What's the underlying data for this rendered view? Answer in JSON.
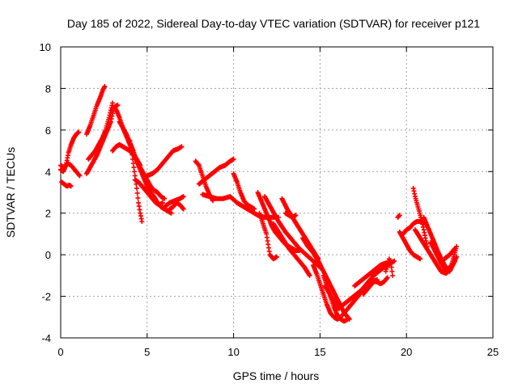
{
  "chart_data": {
    "type": "scatter",
    "title": "Day 185 of 2022, Sidereal Day-to-day VTEC variation (SDTVAR) for receiver p121",
    "xlabel": "GPS time / hours",
    "ylabel": "SDTVAR / TECUs",
    "xlim": [
      0,
      25
    ],
    "ylim": [
      -4,
      10
    ],
    "xticks": [
      0,
      5,
      10,
      15,
      20,
      25
    ],
    "yticks": [
      -4,
      -2,
      0,
      2,
      4,
      6,
      8,
      10
    ],
    "xtick_labels": [
      "0",
      "5",
      "10",
      "15",
      "20",
      "25"
    ],
    "ytick_labels": [
      "-4",
      "-2",
      "0",
      "2",
      "4",
      "6",
      "8",
      "10"
    ],
    "grid": true,
    "marker": "+",
    "color": "#ff0000",
    "series": [
      {
        "name": "arc-1",
        "x": [
          0.0,
          0.15,
          0.3,
          0.45,
          0.6,
          0.75,
          0.9,
          1.05
        ],
        "y": [
          4.1,
          4.0,
          4.3,
          4.9,
          5.3,
          5.6,
          5.8,
          5.9
        ]
      },
      {
        "name": "arc-2",
        "x": [
          0.0,
          0.2,
          0.4,
          0.6,
          0.8,
          1.0,
          1.1
        ],
        "y": [
          4.3,
          4.2,
          4.4,
          4.3,
          4.1,
          3.9,
          3.8
        ]
      },
      {
        "name": "arc-3",
        "x": [
          0.05,
          0.2,
          0.35,
          0.5,
          0.6
        ],
        "y": [
          3.5,
          3.4,
          3.3,
          3.35,
          3.3
        ]
      },
      {
        "name": "arc-4",
        "x": [
          1.5,
          1.7,
          1.9,
          2.1,
          2.3,
          2.45,
          2.55
        ],
        "y": [
          5.8,
          6.2,
          6.7,
          7.2,
          7.6,
          7.95,
          8.1
        ]
      },
      {
        "name": "arc-5",
        "x": [
          1.5,
          1.7,
          1.9,
          2.1,
          2.3,
          2.5,
          2.7,
          2.9,
          3.0,
          3.1,
          3.3
        ],
        "y": [
          3.9,
          4.2,
          4.5,
          4.8,
          5.2,
          5.6,
          6.0,
          6.4,
          6.8,
          7.1,
          7.2
        ]
      },
      {
        "name": "arc-6",
        "x": [
          1.6,
          1.8,
          2.0,
          2.2,
          2.4,
          2.6,
          2.8,
          3.0
        ],
        "y": [
          4.6,
          4.8,
          5.0,
          5.3,
          5.6,
          6.0,
          6.6,
          7.3
        ]
      },
      {
        "name": "arc-7",
        "x": [
          3.0,
          3.2,
          3.4,
          3.6,
          3.8,
          4.0,
          4.2,
          4.4,
          4.6
        ],
        "y": [
          5.0,
          5.2,
          5.3,
          5.2,
          5.1,
          5.0,
          4.8,
          4.6,
          4.3
        ]
      },
      {
        "name": "arc-8",
        "x": [
          3.2,
          3.4,
          3.6,
          3.8,
          4.0,
          4.2,
          4.4,
          4.6,
          4.8,
          5.0,
          5.2,
          5.4,
          5.6,
          5.8,
          6.0
        ],
        "y": [
          7.0,
          6.6,
          6.1,
          5.7,
          5.3,
          4.9,
          4.5,
          4.2,
          3.9,
          3.6,
          3.3,
          3.1,
          3.0,
          2.8,
          2.7
        ]
      },
      {
        "name": "arc-9",
        "x": [
          3.4,
          3.6,
          3.8,
          4.0,
          4.2,
          4.4,
          4.6,
          4.8,
          5.0,
          5.2,
          5.4,
          5.6,
          5.8,
          6.0,
          6.2,
          6.4
        ],
        "y": [
          6.4,
          6.1,
          5.8,
          5.4,
          5.0,
          4.5,
          4.1,
          3.7,
          3.3,
          3.0,
          2.8,
          2.5,
          2.3,
          2.2,
          2.1,
          2.0
        ]
      },
      {
        "name": "arc-10",
        "x": [
          4.0,
          4.1,
          4.2,
          4.3,
          4.4,
          4.5,
          4.6,
          4.7
        ],
        "y": [
          5.5,
          5.0,
          4.4,
          3.8,
          3.2,
          2.5,
          2.0,
          1.6
        ]
      },
      {
        "name": "arc-11",
        "x": [
          4.3,
          4.5,
          4.7,
          4.9,
          5.1,
          5.3,
          5.5,
          5.7,
          5.9
        ],
        "y": [
          3.6,
          3.5,
          3.3,
          3.1,
          2.9,
          2.7,
          2.5,
          2.4,
          2.5
        ]
      },
      {
        "name": "arc-12",
        "x": [
          5.0,
          5.3,
          5.6,
          5.9,
          6.2,
          6.5,
          6.8,
          7.0
        ],
        "y": [
          3.8,
          3.9,
          4.1,
          4.4,
          4.7,
          5.0,
          5.1,
          5.2
        ]
      },
      {
        "name": "arc-13",
        "x": [
          6.0,
          6.3,
          6.6,
          6.9,
          7.1
        ],
        "y": [
          2.3,
          2.5,
          2.6,
          2.7,
          2.8
        ]
      },
      {
        "name": "arc-14",
        "x": [
          6.3,
          6.5,
          6.7,
          6.9,
          7.1
        ],
        "y": [
          2.2,
          2.3,
          2.5,
          2.4,
          2.2
        ]
      },
      {
        "name": "arc-15",
        "x": [
          7.8,
          8.0,
          8.2,
          8.4,
          8.6,
          8.8
        ],
        "y": [
          4.5,
          4.3,
          3.8,
          3.3,
          2.9,
          2.6
        ]
      },
      {
        "name": "arc-16",
        "x": [
          8.0,
          8.3,
          8.6,
          8.9,
          9.2,
          9.5,
          9.8,
          10.0
        ],
        "y": [
          3.4,
          3.6,
          3.8,
          4.0,
          4.2,
          4.3,
          4.5,
          4.6
        ]
      },
      {
        "name": "arc-17",
        "x": [
          8.2,
          8.6,
          9.0,
          9.4,
          9.8,
          10.2,
          10.6,
          11.0,
          11.4,
          11.8,
          12.2,
          12.6
        ],
        "y": [
          2.9,
          2.8,
          2.7,
          2.7,
          2.8,
          2.5,
          2.3,
          2.1,
          1.9,
          1.8,
          1.8,
          1.8
        ]
      },
      {
        "name": "arc-18",
        "x": [
          10.0,
          10.2,
          10.4,
          10.6,
          10.8,
          11.0,
          11.2
        ],
        "y": [
          3.9,
          3.5,
          3.0,
          2.6,
          2.4,
          2.3,
          2.2
        ]
      },
      {
        "name": "arc-19",
        "x": [
          11.4,
          11.6,
          11.8,
          12.0,
          12.2,
          12.4,
          12.6,
          12.8,
          13.0,
          13.2,
          13.4,
          13.6,
          13.8
        ],
        "y": [
          3.0,
          2.6,
          2.2,
          1.8,
          1.4,
          1.1,
          0.9,
          0.7,
          0.5,
          0.4,
          0.3,
          0.2,
          0.2
        ]
      },
      {
        "name": "arc-20",
        "x": [
          11.5,
          11.7,
          11.9,
          12.0,
          12.1,
          12.3,
          12.5
        ],
        "y": [
          2.0,
          1.5,
          1.0,
          0.5,
          0.0,
          -0.2,
          -0.1
        ]
      },
      {
        "name": "arc-21",
        "x": [
          11.8,
          12.2,
          12.6,
          13.0,
          13.4,
          13.8,
          14.2,
          14.6,
          15.0
        ],
        "y": [
          2.8,
          2.2,
          1.6,
          1.1,
          0.7,
          0.3,
          0.0,
          -0.3,
          -0.6
        ]
      },
      {
        "name": "arc-22",
        "x": [
          12.3,
          12.6,
          12.9,
          13.2,
          13.5,
          13.8,
          14.1,
          14.4
        ],
        "y": [
          1.5,
          1.1,
          0.7,
          0.3,
          0.0,
          -0.3,
          -0.6,
          -1.0
        ]
      },
      {
        "name": "arc-23",
        "x": [
          12.8,
          13.1,
          13.4,
          13.7,
          14.0,
          14.3,
          14.6,
          14.9
        ],
        "y": [
          2.7,
          2.2,
          1.8,
          1.4,
          1.0,
          0.6,
          0.2,
          -0.2
        ]
      },
      {
        "name": "arc-24",
        "x": [
          13.0,
          13.2,
          13.4,
          13.6
        ],
        "y": [
          2.0,
          1.9,
          1.8,
          1.9
        ]
      },
      {
        "name": "arc-25",
        "x": [
          14.0,
          14.3,
          14.6,
          14.9,
          15.2,
          15.5,
          15.8,
          16.1,
          16.4,
          16.7
        ],
        "y": [
          0.8,
          0.4,
          0.1,
          -0.3,
          -0.8,
          -1.3,
          -1.8,
          -2.3,
          -2.8,
          -3.1
        ]
      },
      {
        "name": "arc-26",
        "x": [
          14.6,
          14.8,
          15.0,
          15.2,
          15.4,
          15.6,
          15.8,
          16.0,
          16.2
        ],
        "y": [
          -0.5,
          -0.9,
          -1.4,
          -1.9,
          -2.4,
          -2.8,
          -3.0,
          -3.1,
          -3.0
        ]
      },
      {
        "name": "arc-27",
        "x": [
          15.2,
          15.4,
          15.6,
          15.8,
          16.0,
          16.2,
          16.4,
          16.6
        ],
        "y": [
          -1.0,
          -1.5,
          -2.0,
          -2.5,
          -2.9,
          -3.1,
          -3.2,
          -3.1
        ]
      },
      {
        "name": "arc-28",
        "x": [
          15.3,
          15.5,
          15.7,
          15.9,
          16.1
        ],
        "y": [
          -1.5,
          -1.8,
          -2.1,
          -2.3,
          -2.6
        ]
      },
      {
        "name": "arc-29",
        "x": [
          15.9,
          16.2,
          16.5,
          16.8,
          17.1,
          17.4,
          17.7,
          18.0,
          18.3
        ],
        "y": [
          -2.6,
          -2.5,
          -2.3,
          -2.1,
          -1.9,
          -1.7,
          -1.5,
          -1.3,
          -1.2
        ]
      },
      {
        "name": "arc-30",
        "x": [
          16.3,
          16.6,
          16.9,
          17.2,
          17.5,
          17.8,
          18.1,
          18.4,
          18.7,
          19.0
        ],
        "y": [
          -2.9,
          -2.6,
          -2.3,
          -2.0,
          -1.6,
          -1.3,
          -1.0,
          -0.8,
          -0.6,
          -0.5
        ]
      },
      {
        "name": "arc-31",
        "x": [
          17.0,
          17.3,
          17.6,
          17.9,
          18.2,
          18.5,
          18.8,
          19.1,
          19.3
        ],
        "y": [
          -1.5,
          -1.3,
          -1.1,
          -0.9,
          -0.7,
          -0.5,
          -0.4,
          -0.4,
          -0.3
        ]
      },
      {
        "name": "arc-32",
        "x": [
          17.5,
          17.7,
          17.9,
          18.1,
          18.3,
          18.5,
          18.7,
          18.9
        ],
        "y": [
          -1.9,
          -1.7,
          -1.5,
          -1.3,
          -1.3,
          -1.4,
          -1.3,
          -1.1
        ]
      },
      {
        "name": "arc-33",
        "x": [
          18.8,
          18.9,
          19.0,
          19.1,
          19.2
        ],
        "y": [
          -0.8,
          -0.5,
          -0.2,
          -0.4,
          -1.0
        ]
      },
      {
        "name": "arc-34",
        "x": [
          19.5,
          19.6
        ],
        "y": [
          1.8,
          1.9
        ]
      },
      {
        "name": "arc-35",
        "x": [
          19.8,
          20.0,
          20.2,
          20.4,
          20.6,
          20.8,
          21.0
        ],
        "y": [
          1.0,
          1.2,
          1.3,
          1.5,
          1.6,
          1.6,
          1.5
        ]
      },
      {
        "name": "arc-36",
        "x": [
          20.4,
          20.5,
          20.6,
          20.7,
          20.8,
          20.9,
          21.0,
          21.1,
          21.2
        ],
        "y": [
          3.2,
          2.8,
          2.5,
          2.2,
          1.9,
          1.6,
          1.2,
          0.8,
          0.4
        ]
      },
      {
        "name": "arc-37",
        "x": [
          19.6,
          19.8,
          20.0,
          20.2,
          20.4,
          20.6,
          20.8
        ],
        "y": [
          1.1,
          0.8,
          0.5,
          0.2,
          0.0,
          -0.1,
          -0.2
        ]
      },
      {
        "name": "arc-38",
        "x": [
          20.5,
          20.8,
          21.1,
          21.4,
          21.7,
          22.0,
          22.3,
          22.6,
          22.9
        ],
        "y": [
          1.2,
          0.8,
          0.4,
          0.0,
          -0.4,
          -0.8,
          -0.9,
          -0.6,
          -0.1
        ]
      },
      {
        "name": "arc-39",
        "x": [
          21.0,
          21.3,
          21.6,
          21.9,
          22.2,
          22.5,
          22.8
        ],
        "y": [
          1.8,
          1.2,
          0.6,
          0.0,
          -0.5,
          -0.8,
          -0.3
        ]
      },
      {
        "name": "arc-40",
        "x": [
          21.4,
          21.7,
          22.0,
          22.3,
          22.6,
          22.9
        ],
        "y": [
          0.6,
          0.1,
          -0.4,
          -0.8,
          -0.5,
          0.4
        ]
      },
      {
        "name": "arc-41",
        "x": [
          22.2,
          22.5,
          22.8
        ],
        "y": [
          -0.2,
          0.0,
          0.3
        ]
      }
    ]
  }
}
